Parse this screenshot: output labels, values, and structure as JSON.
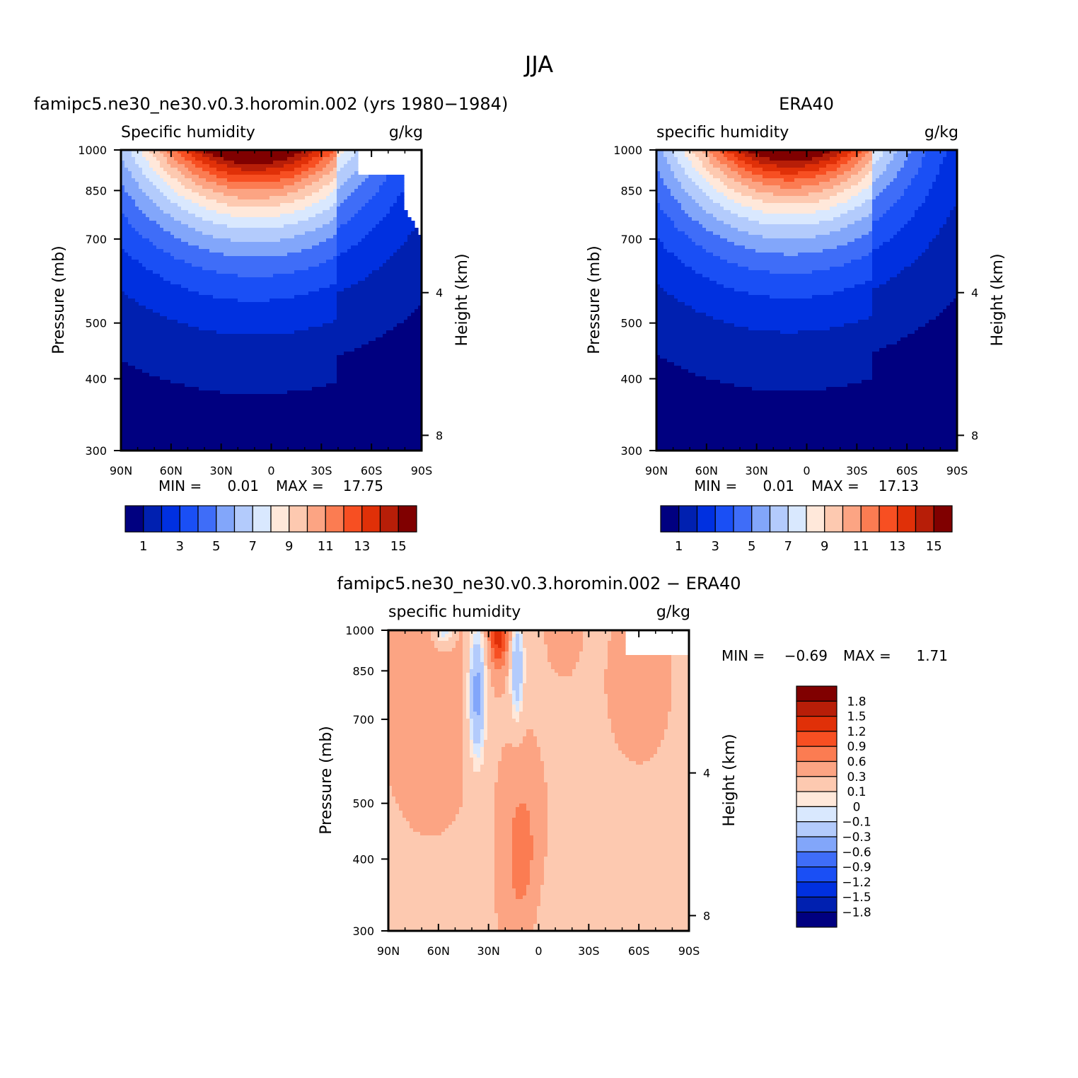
{
  "figure_title": "JJA",
  "colors": {
    "abs_scale": [
      "#000080",
      "#0020b0",
      "#0030e0",
      "#1a4ff5",
      "#3f6df8",
      "#82a6fa",
      "#b3cbfc",
      "#d9e8fe",
      "#ffe8da",
      "#fdc9b0",
      "#fca483",
      "#fb7c52",
      "#f74f22",
      "#e03008",
      "#b71e08",
      "#800000"
    ],
    "diff_scale": [
      "#800000",
      "#b71e08",
      "#e03008",
      "#f74f22",
      "#fb7c52",
      "#fca483",
      "#fdc9b0",
      "#ffe8da",
      "#d9e8fe",
      "#b3cbfc",
      "#82a6fa",
      "#3f6df8",
      "#1a4ff5",
      "#0030e0",
      "#0020b0",
      "#000080"
    ]
  },
  "chart_data": [
    {
      "type": "heatmap",
      "panel_title": "famipc5.ne30_ne30.v0.3.horomin.002 (yrs 1980−1984)",
      "left_label": "Specific humidity",
      "unit": "g/kg",
      "ylabel": "Pressure (mb)",
      "ylabel_right": "Height (km)",
      "x_tick_labels": [
        "90N",
        "60N",
        "30N",
        "0",
        "30S",
        "60S",
        "90S"
      ],
      "xlim": [
        90,
        -90
      ],
      "y_tick_labels": [
        "300",
        "400",
        "500",
        "700",
        "850",
        "1000"
      ],
      "y_ticks": [
        300,
        400,
        500,
        700,
        850,
        1000
      ],
      "ylim": [
        1000,
        300
      ],
      "right_tick_labels": [
        "8",
        "4"
      ],
      "right_ticks_km": [
        8,
        4
      ],
      "stats_text": [
        "MIN =",
        "0.01",
        "MAX =",
        "17.75"
      ],
      "min": 0.01,
      "max": 17.75,
      "levels": [
        1,
        2,
        3,
        4,
        5,
        6,
        7,
        8,
        9,
        10,
        11,
        12,
        13,
        14,
        15
      ],
      "colorbar_labels": [
        "1",
        "3",
        "5",
        "7",
        "9",
        "11",
        "13",
        "15"
      ],
      "field_model": {
        "peak_lat": 10,
        "peak": 17.75,
        "surface_width_deg": 50,
        "pole_floor": 2.0
      }
    },
    {
      "type": "heatmap",
      "panel_title": "ERA40",
      "left_label": "specific humidity",
      "unit": "g/kg",
      "ylabel": "Pressure (mb)",
      "ylabel_right": "Height (km)",
      "x_tick_labels": [
        "90N",
        "60N",
        "30N",
        "0",
        "30S",
        "60S",
        "90S"
      ],
      "xlim": [
        90,
        -90
      ],
      "y_tick_labels": [
        "300",
        "400",
        "500",
        "700",
        "850",
        "1000"
      ],
      "y_ticks": [
        300,
        400,
        500,
        700,
        850,
        1000
      ],
      "ylim": [
        1000,
        300
      ],
      "right_tick_labels": [
        "8",
        "4"
      ],
      "right_ticks_km": [
        8,
        4
      ],
      "stats_text": [
        "MIN =",
        "0.01",
        "MAX =",
        "17.13"
      ],
      "min": 0.01,
      "max": 17.13,
      "levels": [
        1,
        2,
        3,
        4,
        5,
        6,
        7,
        8,
        9,
        10,
        11,
        12,
        13,
        14,
        15
      ],
      "colorbar_labels": [
        "1",
        "3",
        "5",
        "7",
        "9",
        "11",
        "13",
        "15"
      ],
      "field_model": {
        "peak_lat": 10,
        "peak": 17.13,
        "surface_width_deg": 48,
        "pole_floor": 2.0
      }
    },
    {
      "type": "heatmap",
      "panel_title": "famipc5.ne30_ne30.v0.3.horomin.002 − ERA40",
      "left_label": "specific humidity",
      "unit": "g/kg",
      "ylabel": "Pressure (mb)",
      "ylabel_right": "Height (km)",
      "x_tick_labels": [
        "90N",
        "60N",
        "30N",
        "0",
        "30S",
        "60S",
        "90S"
      ],
      "xlim": [
        90,
        -90
      ],
      "y_tick_labels": [
        "300",
        "400",
        "500",
        "700",
        "850",
        "1000"
      ],
      "y_ticks": [
        300,
        400,
        500,
        700,
        850,
        1000
      ],
      "ylim": [
        1000,
        300
      ],
      "right_tick_labels": [
        "8",
        "4"
      ],
      "right_ticks_km": [
        8,
        4
      ],
      "stats_text": [
        "MIN =",
        "−0.69",
        "MAX =",
        "1.71"
      ],
      "min": -0.69,
      "max": 1.71,
      "levels": [
        1.8,
        1.5,
        1.2,
        0.9,
        0.6,
        0.3,
        0.1,
        0,
        -0.1,
        -0.3,
        -0.6,
        -0.9,
        -1.2,
        -1.5,
        -1.8
      ],
      "colorbar_labels": [
        "1.8",
        "1.5",
        "1.2",
        "0.9",
        "0.6",
        "0.3",
        "0.1",
        "0",
        "−0.1",
        "−0.3",
        "−0.6",
        "−0.9",
        "−1.2",
        "−1.5",
        "−1.8"
      ]
    }
  ]
}
